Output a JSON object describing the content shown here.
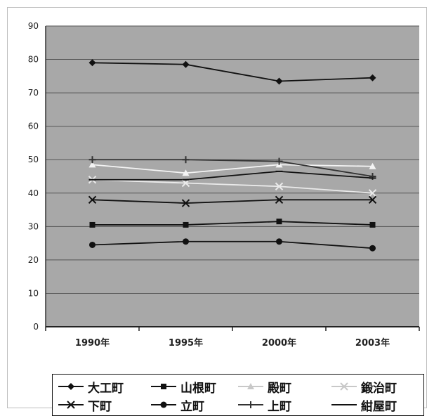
{
  "chart_data": {
    "type": "line",
    "categories": [
      "1990年",
      "1995年",
      "2000年",
      "2003年"
    ],
    "ylim": [
      0,
      90
    ],
    "yticks": [
      0,
      10,
      20,
      30,
      40,
      50,
      60,
      70,
      80,
      90
    ],
    "grid": true,
    "legend_position": "bottom",
    "title": "",
    "xlabel": "",
    "ylabel": "",
    "series": [
      {
        "name": "大工町",
        "marker": "diamond",
        "color": "#111111",
        "values": [
          79,
          78.5,
          73.5,
          74.5
        ]
      },
      {
        "name": "山根町",
        "marker": "square",
        "color": "#111111",
        "values": [
          30.5,
          30.5,
          31.5,
          30.5
        ]
      },
      {
        "name": "殿町",
        "marker": "triangle",
        "color": "#f4f4f4",
        "values": [
          48.5,
          46,
          48.5,
          48
        ]
      },
      {
        "name": "鍛治町",
        "marker": "x",
        "color": "#eaeaea",
        "values": [
          44,
          43,
          42,
          40
        ]
      },
      {
        "name": "下町",
        "marker": "x",
        "color": "#111111",
        "values": [
          38,
          37,
          38,
          38
        ]
      },
      {
        "name": "立町",
        "marker": "circle",
        "color": "#111111",
        "values": [
          24.5,
          25.5,
          25.5,
          23.5
        ]
      },
      {
        "name": "上町",
        "marker": "plus",
        "color": "#333333",
        "values": [
          50,
          50,
          49.5,
          45
        ]
      },
      {
        "name": "紺屋町",
        "marker": "dash",
        "color": "#111111",
        "values": [
          44,
          44,
          46.5,
          44.5
        ]
      }
    ]
  },
  "colors": {
    "plot_background": "#a8a8a8",
    "gridline": "#555555"
  }
}
